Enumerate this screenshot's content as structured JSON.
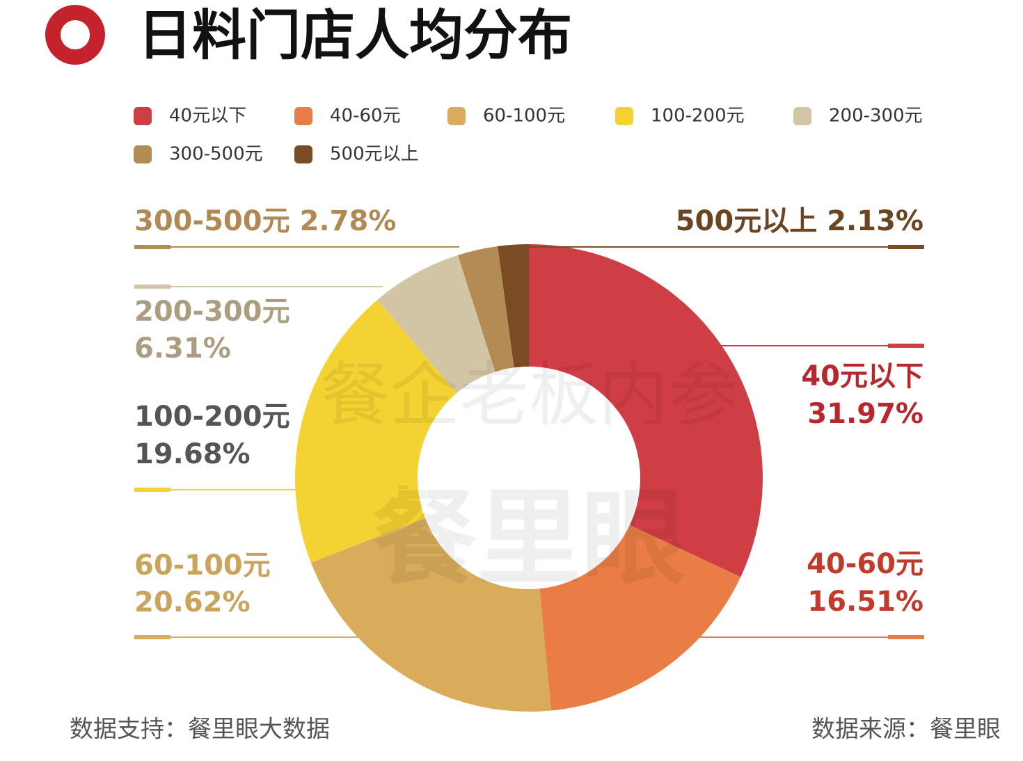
{
  "chart_data": {
    "type": "donut",
    "title": "日料门店人均分布",
    "categories": [
      "40元以下",
      "40-60元",
      "60-100元",
      "100-200元",
      "200-300元",
      "300-500元",
      "500元以上"
    ],
    "values": [
      31.97,
      16.51,
      20.62,
      19.68,
      6.31,
      2.78,
      2.13
    ],
    "value_labels": [
      "31.97%",
      "16.51%",
      "20.62%",
      "19.68%",
      "6.31%",
      "2.78%",
      "2.13%"
    ],
    "colors": [
      "#cf3d45",
      "#ea7d45",
      "#d8ac5a",
      "#f3d232",
      "#d2c5a6",
      "#b38c55",
      "#7b4b24"
    ],
    "legend": "top",
    "watermark": [
      "餐企老板内参",
      "餐里眼"
    ],
    "footer_left": "数据支持：餐里眼大数据",
    "footer_right": "数据来源：餐里眼"
  }
}
